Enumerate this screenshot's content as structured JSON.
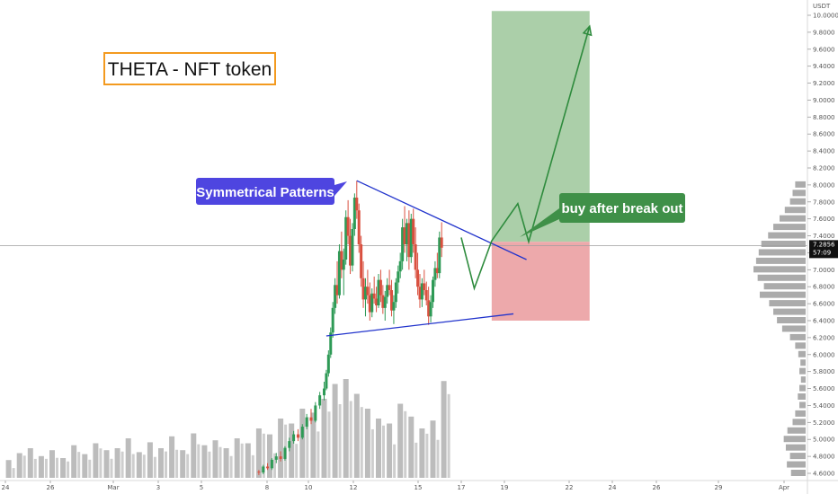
{
  "chart_data": {
    "type": "candlestick",
    "title": "THETA - NFT token",
    "currency": "USDT",
    "ylim": [
      4.55,
      10.05
    ],
    "y_ticks": [
      "10.0000",
      "9.8000",
      "9.6000",
      "9.4000",
      "9.2000",
      "9.0000",
      "8.8000",
      "8.6000",
      "8.4000",
      "8.2000",
      "8.0000",
      "7.8000",
      "7.6000",
      "7.4000",
      "7.2000",
      "7.0000",
      "6.8000",
      "6.6000",
      "6.4000",
      "6.2000",
      "6.0000",
      "5.8000",
      "5.6000",
      "5.4000",
      "5.2000",
      "5.0000",
      "4.8000",
      "4.6000"
    ],
    "x_ticks": [
      "24",
      "26",
      "Mar",
      "3",
      "5",
      "8",
      "10",
      "12",
      "15",
      "17",
      "19",
      "22",
      "24",
      "26",
      "29",
      "Apr"
    ],
    "current_price": {
      "label": "7.2856",
      "countdown": "57:09",
      "value": 7.2856
    },
    "annotations": {
      "pattern_label": "Symmetrical Patterns",
      "action_label": "buy after break out"
    },
    "pattern": {
      "upper_line": [
        [
          12.0,
          8.05
        ],
        [
          19.8,
          7.12
        ]
      ],
      "lower_line": [
        [
          10.6,
          6.22
        ],
        [
          19.2,
          6.48
        ]
      ]
    },
    "projection": [
      [
        16.8,
        7.38
      ],
      [
        17.4,
        6.78
      ],
      [
        18.2,
        7.34
      ],
      [
        19.4,
        7.78
      ],
      [
        19.9,
        7.33
      ],
      [
        22.7,
        9.87
      ]
    ],
    "trade_zone": {
      "entry": 7.33,
      "target": 10.05,
      "stop": 6.4,
      "x_start": 18.2,
      "x_end": 22.7
    },
    "colors": {
      "up": "#2e9a56",
      "down": "#d9503f",
      "volume": "#a6a6a6",
      "pattern_line": "#2133cc",
      "projection_line": "#2e8b3d",
      "target_zone": "#a6ccA4",
      "stop_zone": "#eca4a6",
      "pattern_callout": "#4e45e0",
      "action_callout": "#3f9048",
      "title_border": "#f39a1f",
      "price_line": "#9e9e9e"
    },
    "candles": [
      {
        "x": 7.5,
        "o": 4.62,
        "h": 4.64,
        "l": 4.58,
        "c": 4.61
      },
      {
        "x": 7.7,
        "o": 4.61,
        "h": 4.7,
        "l": 4.59,
        "c": 4.68
      },
      {
        "x": 7.9,
        "o": 4.68,
        "h": 4.72,
        "l": 4.64,
        "c": 4.66
      },
      {
        "x": 8.1,
        "o": 4.66,
        "h": 4.78,
        "l": 4.64,
        "c": 4.76
      },
      {
        "x": 8.3,
        "o": 4.76,
        "h": 4.84,
        "l": 4.72,
        "c": 4.8
      },
      {
        "x": 8.5,
        "o": 4.8,
        "h": 4.86,
        "l": 4.74,
        "c": 4.77
      },
      {
        "x": 8.7,
        "o": 4.77,
        "h": 4.92,
        "l": 4.75,
        "c": 4.9
      },
      {
        "x": 8.9,
        "o": 4.9,
        "h": 5.02,
        "l": 4.86,
        "c": 4.98
      },
      {
        "x": 9.1,
        "o": 4.98,
        "h": 5.1,
        "l": 4.95,
        "c": 5.06
      },
      {
        "x": 9.3,
        "o": 5.06,
        "h": 5.12,
        "l": 4.98,
        "c": 5.02
      },
      {
        "x": 9.5,
        "o": 5.02,
        "h": 5.18,
        "l": 5.0,
        "c": 5.15
      },
      {
        "x": 9.7,
        "o": 5.15,
        "h": 5.3,
        "l": 5.12,
        "c": 5.26
      },
      {
        "x": 9.9,
        "o": 5.26,
        "h": 5.36,
        "l": 5.18,
        "c": 5.22
      },
      {
        "x": 10.1,
        "o": 5.22,
        "h": 5.44,
        "l": 5.2,
        "c": 5.4
      },
      {
        "x": 10.3,
        "o": 5.4,
        "h": 5.56,
        "l": 5.36,
        "c": 5.52
      },
      {
        "x": 10.5,
        "o": 5.52,
        "h": 5.68,
        "l": 5.46,
        "c": 5.6
      },
      {
        "x": 10.6,
        "o": 5.6,
        "h": 5.82,
        "l": 5.58,
        "c": 5.78
      },
      {
        "x": 10.7,
        "o": 5.78,
        "h": 6.05,
        "l": 5.74,
        "c": 6.0
      },
      {
        "x": 10.8,
        "o": 6.0,
        "h": 6.32,
        "l": 5.96,
        "c": 6.26
      },
      {
        "x": 10.9,
        "o": 6.26,
        "h": 6.62,
        "l": 6.2,
        "c": 6.55
      },
      {
        "x": 11.0,
        "o": 6.55,
        "h": 6.9,
        "l": 6.48,
        "c": 6.82
      },
      {
        "x": 11.1,
        "o": 6.82,
        "h": 7.1,
        "l": 6.6,
        "c": 6.7
      },
      {
        "x": 11.2,
        "o": 6.7,
        "h": 7.3,
        "l": 6.66,
        "c": 7.22
      },
      {
        "x": 11.3,
        "o": 7.22,
        "h": 7.45,
        "l": 6.9,
        "c": 7.0
      },
      {
        "x": 11.4,
        "o": 7.0,
        "h": 7.25,
        "l": 6.7,
        "c": 7.12
      },
      {
        "x": 11.5,
        "o": 7.12,
        "h": 7.7,
        "l": 7.06,
        "c": 7.62
      },
      {
        "x": 11.6,
        "o": 7.62,
        "h": 7.82,
        "l": 7.3,
        "c": 7.4
      },
      {
        "x": 11.7,
        "o": 7.4,
        "h": 7.6,
        "l": 6.95,
        "c": 7.05
      },
      {
        "x": 11.8,
        "o": 7.05,
        "h": 7.55,
        "l": 6.98,
        "c": 7.48
      },
      {
        "x": 11.9,
        "o": 7.48,
        "h": 7.9,
        "l": 7.4,
        "c": 7.85
      },
      {
        "x": 12.0,
        "o": 7.85,
        "h": 8.05,
        "l": 7.6,
        "c": 7.7
      },
      {
        "x": 12.1,
        "o": 7.7,
        "h": 7.78,
        "l": 7.2,
        "c": 7.3
      },
      {
        "x": 12.2,
        "o": 7.3,
        "h": 7.4,
        "l": 6.8,
        "c": 6.9
      },
      {
        "x": 12.3,
        "o": 6.9,
        "h": 7.1,
        "l": 6.55,
        "c": 6.65
      },
      {
        "x": 12.4,
        "o": 6.65,
        "h": 6.9,
        "l": 6.45,
        "c": 6.8
      },
      {
        "x": 12.5,
        "o": 6.8,
        "h": 7.0,
        "l": 6.6,
        "c": 6.7
      },
      {
        "x": 12.6,
        "o": 6.7,
        "h": 6.85,
        "l": 6.4,
        "c": 6.5
      },
      {
        "x": 12.7,
        "o": 6.5,
        "h": 6.78,
        "l": 6.44,
        "c": 6.72
      },
      {
        "x": 12.8,
        "o": 6.72,
        "h": 6.92,
        "l": 6.6,
        "c": 6.66
      },
      {
        "x": 12.9,
        "o": 6.66,
        "h": 6.8,
        "l": 6.5,
        "c": 6.58
      },
      {
        "x": 13.0,
        "o": 6.58,
        "h": 6.95,
        "l": 6.55,
        "c": 6.88
      },
      {
        "x": 13.1,
        "o": 6.88,
        "h": 7.0,
        "l": 6.62,
        "c": 6.7
      },
      {
        "x": 13.2,
        "o": 6.7,
        "h": 6.82,
        "l": 6.48,
        "c": 6.55
      },
      {
        "x": 13.3,
        "o": 6.55,
        "h": 6.75,
        "l": 6.4,
        "c": 6.68
      },
      {
        "x": 13.4,
        "o": 6.68,
        "h": 6.9,
        "l": 6.6,
        "c": 6.82
      },
      {
        "x": 13.5,
        "o": 6.82,
        "h": 7.0,
        "l": 6.7,
        "c": 6.76
      },
      {
        "x": 13.6,
        "o": 6.76,
        "h": 6.88,
        "l": 6.45,
        "c": 6.52
      },
      {
        "x": 13.7,
        "o": 6.52,
        "h": 6.7,
        "l": 6.36,
        "c": 6.62
      },
      {
        "x": 13.8,
        "o": 6.62,
        "h": 6.9,
        "l": 6.55,
        "c": 6.85
      },
      {
        "x": 13.9,
        "o": 6.85,
        "h": 7.05,
        "l": 6.72,
        "c": 6.98
      },
      {
        "x": 14.0,
        "o": 6.98,
        "h": 7.2,
        "l": 6.9,
        "c": 7.1
      },
      {
        "x": 14.1,
        "o": 7.1,
        "h": 7.6,
        "l": 7.0,
        "c": 7.5
      },
      {
        "x": 14.2,
        "o": 7.5,
        "h": 7.75,
        "l": 7.2,
        "c": 7.3
      },
      {
        "x": 14.3,
        "o": 7.3,
        "h": 7.6,
        "l": 7.1,
        "c": 7.55
      },
      {
        "x": 14.4,
        "o": 7.55,
        "h": 7.7,
        "l": 7.0,
        "c": 7.15
      },
      {
        "x": 14.5,
        "o": 7.15,
        "h": 7.66,
        "l": 7.08,
        "c": 7.6
      },
      {
        "x": 14.6,
        "o": 7.6,
        "h": 7.72,
        "l": 7.2,
        "c": 7.3
      },
      {
        "x": 14.7,
        "o": 7.3,
        "h": 7.5,
        "l": 6.9,
        "c": 7.0
      },
      {
        "x": 14.8,
        "o": 7.0,
        "h": 7.2,
        "l": 6.7,
        "c": 6.8
      },
      {
        "x": 14.9,
        "o": 6.8,
        "h": 6.95,
        "l": 6.55,
        "c": 6.65
      },
      {
        "x": 15.0,
        "o": 6.65,
        "h": 6.9,
        "l": 6.56,
        "c": 6.84
      },
      {
        "x": 15.1,
        "o": 6.84,
        "h": 7.0,
        "l": 6.7,
        "c": 6.76
      },
      {
        "x": 15.2,
        "o": 6.76,
        "h": 6.86,
        "l": 6.58,
        "c": 6.64
      },
      {
        "x": 15.3,
        "o": 6.64,
        "h": 6.8,
        "l": 6.35,
        "c": 6.45
      },
      {
        "x": 15.4,
        "o": 6.45,
        "h": 6.7,
        "l": 6.38,
        "c": 6.62
      },
      {
        "x": 15.5,
        "o": 6.62,
        "h": 6.92,
        "l": 6.55,
        "c": 6.88
      },
      {
        "x": 15.6,
        "o": 6.88,
        "h": 7.1,
        "l": 6.8,
        "c": 7.02
      },
      {
        "x": 15.7,
        "o": 7.02,
        "h": 7.2,
        "l": 6.9,
        "c": 6.96
      },
      {
        "x": 15.8,
        "o": 6.96,
        "h": 7.45,
        "l": 6.9,
        "c": 7.38
      },
      {
        "x": 15.9,
        "o": 7.38,
        "h": 7.56,
        "l": 7.15,
        "c": 7.26
      }
    ],
    "volumes": [
      {
        "x": -4.0,
        "v": 0.18
      },
      {
        "x": -3.5,
        "v": 0.25
      },
      {
        "x": -3.0,
        "v": 0.3
      },
      {
        "x": -2.5,
        "v": 0.22
      },
      {
        "x": -2.0,
        "v": 0.28
      },
      {
        "x": -1.5,
        "v": 0.2
      },
      {
        "x": -1.0,
        "v": 0.33
      },
      {
        "x": -0.5,
        "v": 0.24
      },
      {
        "x": 0.0,
        "v": 0.35
      },
      {
        "x": 0.5,
        "v": 0.28
      },
      {
        "x": 1.0,
        "v": 0.3
      },
      {
        "x": 1.5,
        "v": 0.4
      },
      {
        "x": 2.0,
        "v": 0.26
      },
      {
        "x": 2.5,
        "v": 0.36
      },
      {
        "x": 3.0,
        "v": 0.3
      },
      {
        "x": 3.5,
        "v": 0.42
      },
      {
        "x": 4.0,
        "v": 0.28
      },
      {
        "x": 4.5,
        "v": 0.45
      },
      {
        "x": 5.0,
        "v": 0.33
      },
      {
        "x": 5.5,
        "v": 0.38
      },
      {
        "x": 6.0,
        "v": 0.3
      },
      {
        "x": 6.5,
        "v": 0.4
      },
      {
        "x": 7.0,
        "v": 0.35
      },
      {
        "x": 7.5,
        "v": 0.5
      },
      {
        "x": 8.0,
        "v": 0.44
      },
      {
        "x": 8.5,
        "v": 0.6
      },
      {
        "x": 9.0,
        "v": 0.55
      },
      {
        "x": 9.5,
        "v": 0.7
      },
      {
        "x": 10.0,
        "v": 0.66
      },
      {
        "x": 10.5,
        "v": 0.8
      },
      {
        "x": 11.0,
        "v": 0.95
      },
      {
        "x": 11.5,
        "v": 1.0
      },
      {
        "x": 12.0,
        "v": 0.85
      },
      {
        "x": 12.5,
        "v": 0.7
      },
      {
        "x": 13.0,
        "v": 0.6
      },
      {
        "x": 13.5,
        "v": 0.55
      },
      {
        "x": 14.0,
        "v": 0.75
      },
      {
        "x": 14.5,
        "v": 0.62
      },
      {
        "x": 15.0,
        "v": 0.5
      },
      {
        "x": 15.5,
        "v": 0.58
      },
      {
        "x": 16.0,
        "v": 0.98
      }
    ],
    "volume_profile": [
      {
        "price": 8.0,
        "w": 0.2
      },
      {
        "price": 7.9,
        "w": 0.25
      },
      {
        "price": 7.8,
        "w": 0.3
      },
      {
        "price": 7.7,
        "w": 0.4
      },
      {
        "price": 7.6,
        "w": 0.5
      },
      {
        "price": 7.5,
        "w": 0.62
      },
      {
        "price": 7.4,
        "w": 0.72
      },
      {
        "price": 7.3,
        "w": 0.85
      },
      {
        "price": 7.2,
        "w": 0.9
      },
      {
        "price": 7.1,
        "w": 0.95
      },
      {
        "price": 7.0,
        "w": 1.0
      },
      {
        "price": 6.9,
        "w": 0.92
      },
      {
        "price": 6.8,
        "w": 0.8
      },
      {
        "price": 6.7,
        "w": 0.88
      },
      {
        "price": 6.6,
        "w": 0.7
      },
      {
        "price": 6.5,
        "w": 0.62
      },
      {
        "price": 6.4,
        "w": 0.55
      },
      {
        "price": 6.3,
        "w": 0.45
      },
      {
        "price": 6.2,
        "w": 0.3
      },
      {
        "price": 6.1,
        "w": 0.2
      },
      {
        "price": 6.0,
        "w": 0.14
      },
      {
        "price": 5.9,
        "w": 0.1
      },
      {
        "price": 5.8,
        "w": 0.12
      },
      {
        "price": 5.7,
        "w": 0.09
      },
      {
        "price": 5.6,
        "w": 0.12
      },
      {
        "price": 5.5,
        "w": 0.15
      },
      {
        "price": 5.4,
        "w": 0.12
      },
      {
        "price": 5.3,
        "w": 0.2
      },
      {
        "price": 5.2,
        "w": 0.25
      },
      {
        "price": 5.1,
        "w": 0.35
      },
      {
        "price": 5.0,
        "w": 0.42
      },
      {
        "price": 4.9,
        "w": 0.38
      },
      {
        "price": 4.8,
        "w": 0.3
      },
      {
        "price": 4.7,
        "w": 0.36
      },
      {
        "price": 4.6,
        "w": 0.28
      }
    ]
  }
}
